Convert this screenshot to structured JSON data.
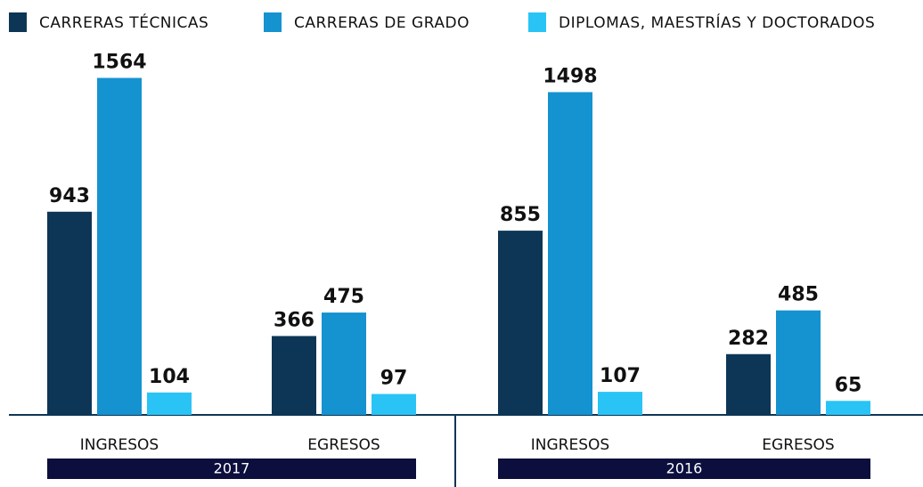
{
  "chart_data": {
    "type": "bar",
    "categories": [
      "INGRESOS",
      "EGRESOS",
      "INGRESOS",
      "EGRESOS"
    ],
    "groups": [
      "2017",
      "2016"
    ],
    "series": [
      {
        "name": "CARRERAS TÉCNICAS",
        "color": "#0d3656",
        "values": [
          943,
          366,
          855,
          282
        ]
      },
      {
        "name": "CARRERAS DE GRADO",
        "color": "#1592d0",
        "values": [
          1564,
          475,
          1498,
          485
        ]
      },
      {
        "name": "DIPLOMAS, MAESTRÍAS Y DOCTORADOS",
        "color": "#29c4f5",
        "values": [
          104,
          97,
          107,
          65
        ]
      }
    ],
    "group_color": "#0c0f3d"
  }
}
